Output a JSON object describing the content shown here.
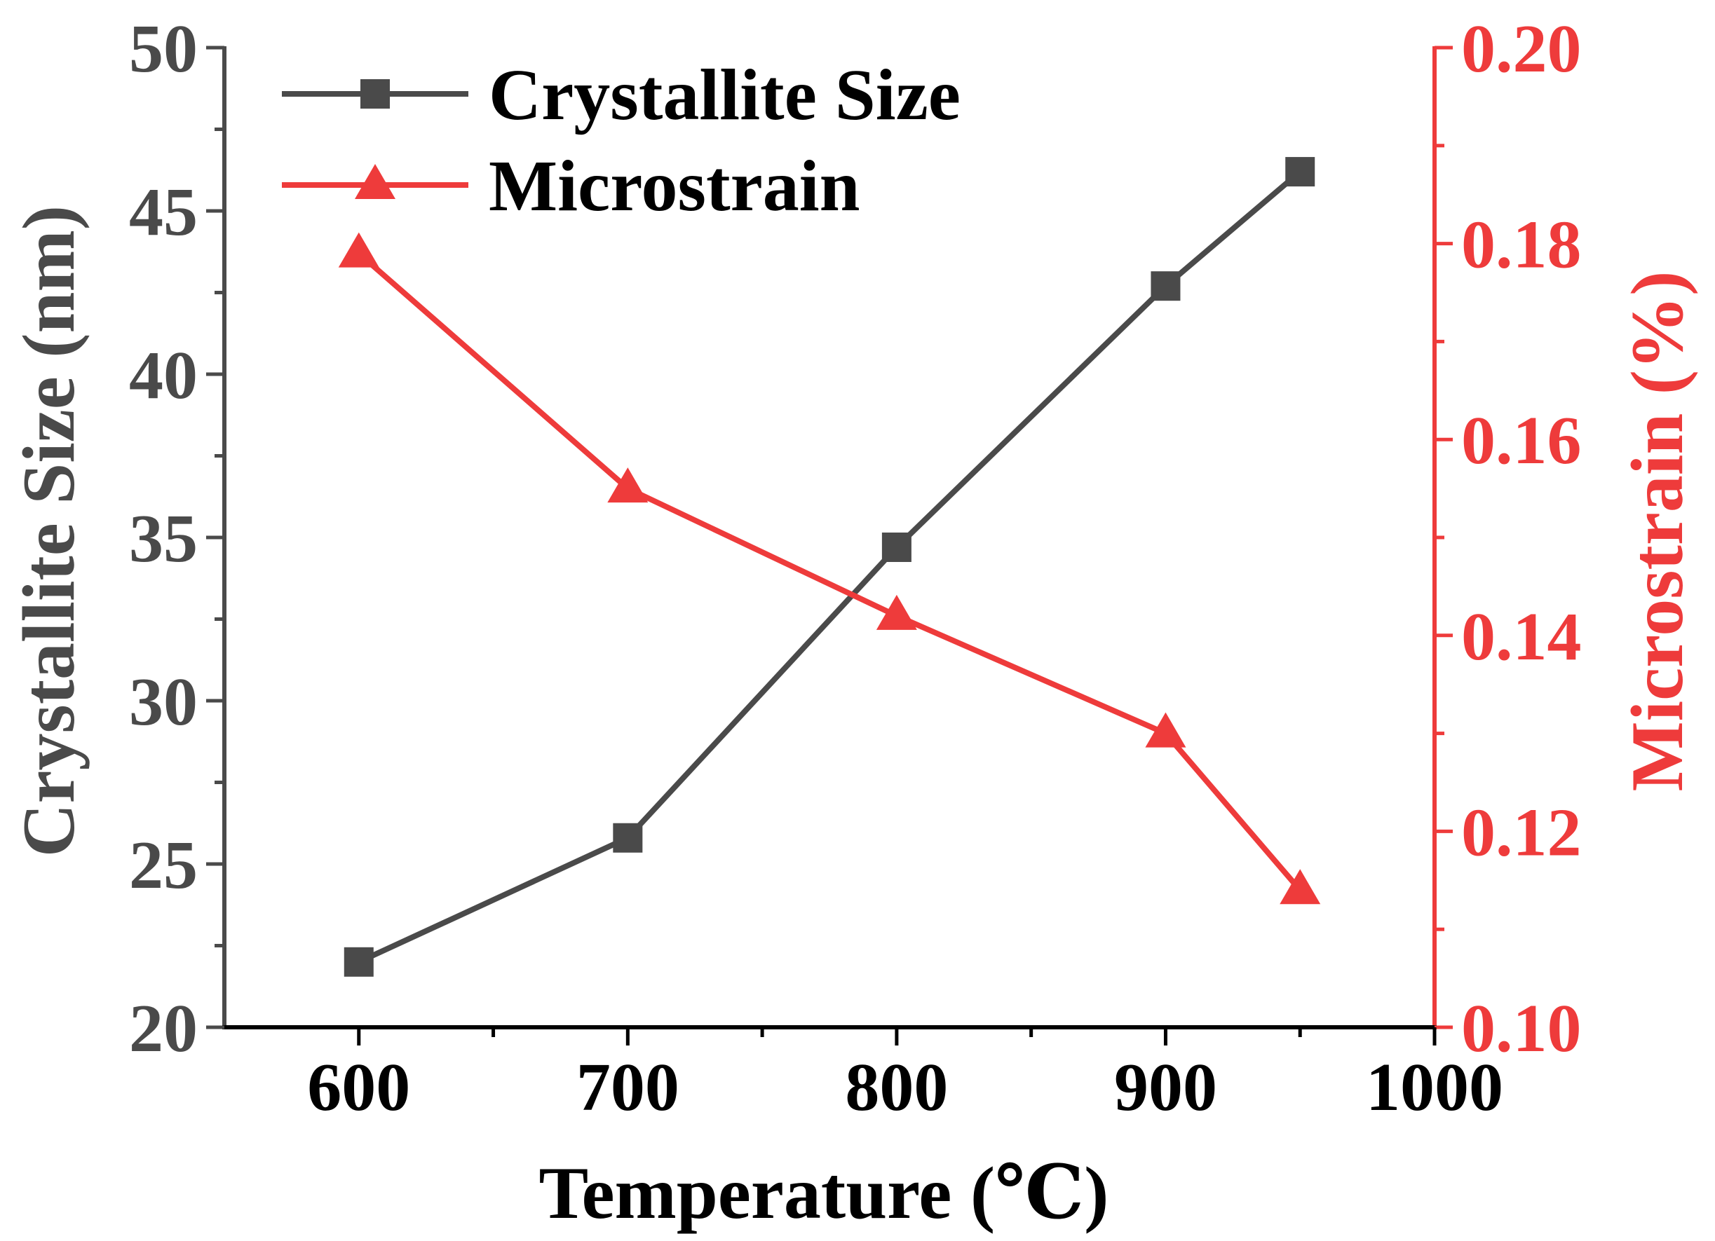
{
  "chart_data": {
    "type": "line",
    "title": "",
    "xlabel": "Temperature (℃)",
    "ylabel_left": "Crystallite Size (nm)",
    "ylabel_right": "Microstrain (%)",
    "xlim": [
      550,
      1000
    ],
    "x_ticks": [
      600,
      700,
      800,
      900,
      1000
    ],
    "x_tick_labels": [
      "600",
      "700",
      "800",
      "900",
      "1000"
    ],
    "ylim_left": [
      20,
      50
    ],
    "y_left_ticks": [
      20,
      25,
      30,
      35,
      40,
      45,
      50
    ],
    "y_left_tick_labels": [
      "20",
      "25",
      "30",
      "35",
      "40",
      "45",
      "50"
    ],
    "ylim_right": [
      0.1,
      0.2
    ],
    "y_right_ticks": [
      0.1,
      0.12,
      0.14,
      0.16,
      0.18,
      0.2
    ],
    "y_right_tick_labels": [
      "0.10",
      "0.12",
      "0.14",
      "0.16",
      "0.18",
      "0.20"
    ],
    "grid": false,
    "legend_position": "top-left",
    "x": [
      600,
      700,
      800,
      900,
      950
    ],
    "series": [
      {
        "name": "Crystallite Size",
        "axis": "left",
        "marker": "square",
        "color": "#4a4a4a",
        "values": [
          22.0,
          25.8,
          34.7,
          42.7,
          46.2
        ]
      },
      {
        "name": "Microstrain",
        "axis": "right",
        "marker": "triangle",
        "color": "#ee3b3b",
        "values": [
          0.179,
          0.155,
          0.142,
          0.13,
          0.114
        ]
      }
    ],
    "colors": {
      "left_axis": "#4a4a4a",
      "right_axis": "#ee3b3b",
      "bottom_axis": "#000000"
    }
  }
}
